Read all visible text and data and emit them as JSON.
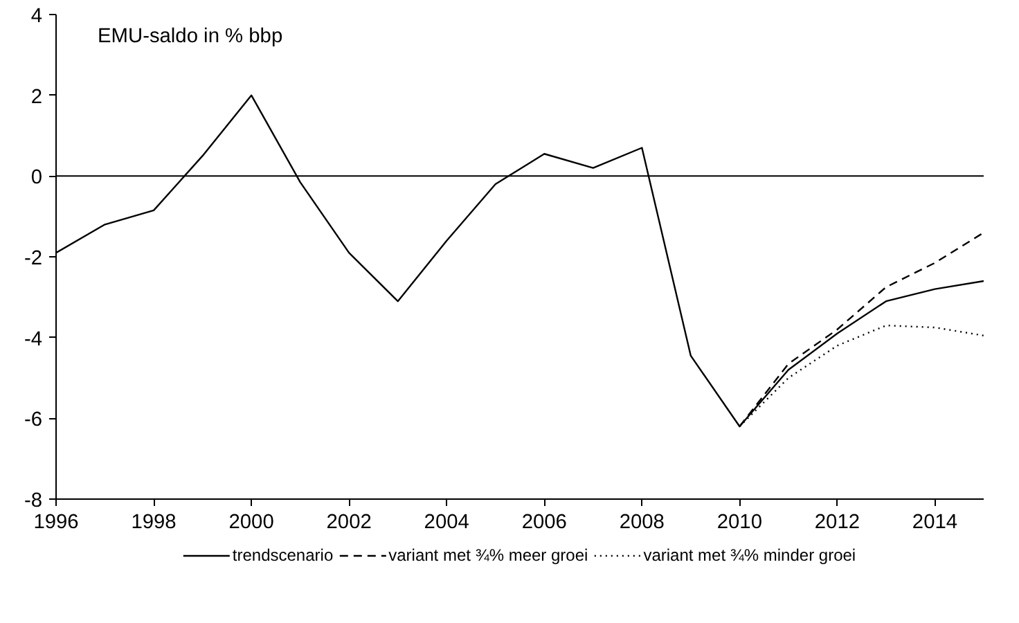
{
  "chart_data": {
    "type": "line",
    "title": "EMU-saldo in % bbp",
    "xlim": [
      1996,
      2015
    ],
    "ylim": [
      -8,
      4
    ],
    "xticks": [
      1996,
      1998,
      2000,
      2002,
      2004,
      2006,
      2008,
      2010,
      2012,
      2014
    ],
    "yticks": [
      -8,
      -6,
      -4,
      -2,
      0,
      2,
      4
    ],
    "grid": false,
    "legend": "bottom",
    "marker": "none",
    "ref_lines": [
      {
        "axis": "y",
        "value": 0,
        "color": "#000000",
        "line_style": "solid"
      }
    ],
    "series": [
      {
        "name": "trendscenario",
        "color": "#000000",
        "line_style": "solid",
        "x": [
          1996,
          1997,
          1998,
          1999,
          2000,
          2001,
          2002,
          2003,
          2004,
          2005,
          2006,
          2007,
          2008,
          2009,
          2010,
          2011,
          2012,
          2013,
          2014,
          2015
        ],
        "values": [
          -1.9,
          -1.2,
          -0.85,
          0.5,
          2.0,
          -0.15,
          -1.9,
          -3.1,
          -1.6,
          -0.2,
          0.55,
          0.2,
          0.7,
          -4.45,
          -6.2,
          -4.8,
          -3.9,
          -3.1,
          -2.8,
          -2.6
        ]
      },
      {
        "name": "variant met ¾% meer groei",
        "color": "#000000",
        "line_style": "dashed",
        "x": [
          2010,
          2011,
          2012,
          2013,
          2014,
          2015
        ],
        "values": [
          -6.2,
          -4.65,
          -3.8,
          -2.75,
          -2.15,
          -1.4
        ]
      },
      {
        "name": "variant met ¾% minder groei",
        "color": "#000000",
        "line_style": "dotted",
        "x": [
          2010,
          2011,
          2012,
          2013,
          2014,
          2015
        ],
        "values": [
          -6.2,
          -5.0,
          -4.2,
          -3.7,
          -3.75,
          -3.95
        ]
      }
    ]
  }
}
